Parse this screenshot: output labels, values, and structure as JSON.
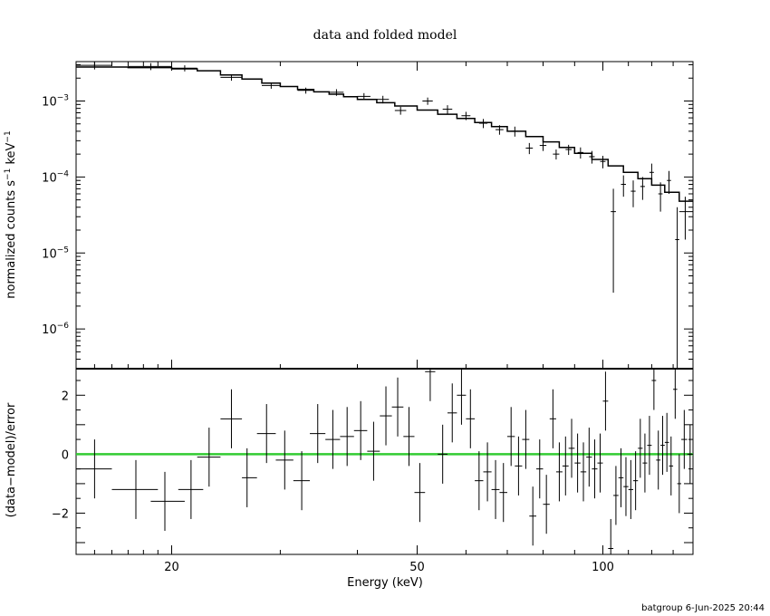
{
  "chart_data": [
    {
      "type": "scatter",
      "panel": "spectrum",
      "title": "data and folded model",
      "ylabel_main": "normalized counts s",
      "ylabel_sup1": "−1",
      "ylabel_mid": " keV",
      "ylabel_sup2": "−1",
      "x_scale": "log",
      "y_scale": "log",
      "xlim": [
        14,
        140
      ],
      "ylim": [
        3e-07,
        0.0033
      ],
      "y_ticks": [
        {
          "value": 0.001,
          "base": "10",
          "exp": "−3"
        },
        {
          "value": 0.0001,
          "base": "10",
          "exp": "−4"
        },
        {
          "value": 1e-05,
          "base": "10",
          "exp": "−5"
        },
        {
          "value": 1e-06,
          "base": "10",
          "exp": "−6"
        }
      ],
      "model": {
        "edges": [
          14,
          17,
          20,
          22,
          24,
          26,
          28,
          30,
          32,
          34,
          36,
          38,
          40,
          43,
          46,
          50,
          54,
          58,
          62,
          66,
          70,
          75,
          80,
          85,
          90,
          96,
          102,
          108,
          114,
          120,
          126,
          133,
          140
        ],
        "values": [
          0.0028,
          0.00275,
          0.00265,
          0.0025,
          0.0022,
          0.00195,
          0.00172,
          0.00155,
          0.00142,
          0.00132,
          0.00123,
          0.00114,
          0.00105,
          0.00095,
          0.00086,
          0.00076,
          0.00067,
          0.00059,
          0.00052,
          0.00046,
          0.0004,
          0.00034,
          0.00029,
          0.000245,
          0.000205,
          0.00017,
          0.00014,
          0.000115,
          9.5e-05,
          7.8e-05,
          6.3e-05,
          4.8e-05
        ]
      },
      "points": [
        {
          "x": 15.0,
          "xlo": 14.0,
          "xhi": 16.0,
          "y": 0.00295,
          "ylo": 0.0026,
          "yhi": 0.0033
        },
        {
          "x": 18.5,
          "xlo": 17.0,
          "xhi": 20.0,
          "y": 0.00285,
          "ylo": 0.00255,
          "yhi": 0.00315
        },
        {
          "x": 21.0,
          "xlo": 20.0,
          "xhi": 22.0,
          "y": 0.0027,
          "ylo": 0.00245,
          "yhi": 0.00295
        },
        {
          "x": 25.0,
          "xlo": 24.0,
          "xhi": 26.0,
          "y": 0.00205,
          "ylo": 0.00185,
          "yhi": 0.00225
        },
        {
          "x": 29.0,
          "xlo": 28.0,
          "xhi": 30.0,
          "y": 0.0016,
          "ylo": 0.00145,
          "yhi": 0.00175
        },
        {
          "x": 33.0,
          "xlo": 32.0,
          "xhi": 34.0,
          "y": 0.00138,
          "ylo": 0.00125,
          "yhi": 0.0015
        },
        {
          "x": 37.0,
          "xlo": 36.0,
          "xhi": 38.0,
          "y": 0.0013,
          "ylo": 0.00117,
          "yhi": 0.00143
        },
        {
          "x": 41.0,
          "xlo": 40.0,
          "xhi": 42.0,
          "y": 0.00115,
          "ylo": 0.00103,
          "yhi": 0.00127
        },
        {
          "x": 44.0,
          "xlo": 43.0,
          "xhi": 45.0,
          "y": 0.00105,
          "ylo": 0.00093,
          "yhi": 0.00117
        },
        {
          "x": 47.0,
          "xlo": 46.0,
          "xhi": 48.0,
          "y": 0.00075,
          "ylo": 0.00066,
          "yhi": 0.00084
        },
        {
          "x": 52.0,
          "xlo": 51.0,
          "xhi": 53.0,
          "y": 0.001,
          "ylo": 0.00089,
          "yhi": 0.00111
        },
        {
          "x": 56.0,
          "xlo": 55.0,
          "xhi": 57.0,
          "y": 0.00078,
          "ylo": 0.00068,
          "yhi": 0.00088
        },
        {
          "x": 60.0,
          "xlo": 59.0,
          "xhi": 61.0,
          "y": 0.00064,
          "ylo": 0.00056,
          "yhi": 0.00072
        },
        {
          "x": 64.0,
          "xlo": 63.0,
          "xhi": 65.0,
          "y": 0.00051,
          "ylo": 0.00044,
          "yhi": 0.00058
        },
        {
          "x": 68.0,
          "xlo": 67.0,
          "xhi": 69.0,
          "y": 0.00042,
          "ylo": 0.00036,
          "yhi": 0.00048
        },
        {
          "x": 72.0,
          "xlo": 71.0,
          "xhi": 73.0,
          "y": 0.0004,
          "ylo": 0.00034,
          "yhi": 0.00046
        },
        {
          "x": 76.0,
          "xlo": 75.0,
          "xhi": 77.0,
          "y": 0.00024,
          "ylo": 0.0002,
          "yhi": 0.00028
        },
        {
          "x": 80.0,
          "xlo": 79.0,
          "xhi": 81.0,
          "y": 0.00026,
          "ylo": 0.00022,
          "yhi": 0.0003
        },
        {
          "x": 84.0,
          "xlo": 83.0,
          "xhi": 85.0,
          "y": 0.0002,
          "ylo": 0.00017,
          "yhi": 0.00023
        },
        {
          "x": 88.0,
          "xlo": 87.0,
          "xhi": 89.0,
          "y": 0.00023,
          "ylo": 0.000195,
          "yhi": 0.000265
        },
        {
          "x": 92.0,
          "xlo": 91.0,
          "xhi": 93.0,
          "y": 0.00021,
          "ylo": 0.000175,
          "yhi": 0.000245
        },
        {
          "x": 96.0,
          "xlo": 95.0,
          "xhi": 97.0,
          "y": 0.000185,
          "ylo": 0.00015,
          "yhi": 0.00022
        },
        {
          "x": 100.0,
          "xlo": 99.0,
          "xhi": 101.0,
          "y": 0.00016,
          "ylo": 0.00013,
          "yhi": 0.00019
        },
        {
          "x": 104.0,
          "xlo": 103.0,
          "xhi": 105.0,
          "y": 3.5e-05,
          "ylo": 3e-06,
          "yhi": 7e-05
        },
        {
          "x": 108.0,
          "xlo": 107.0,
          "xhi": 109.0,
          "y": 8e-05,
          "ylo": 5.5e-05,
          "yhi": 0.000105
        },
        {
          "x": 112.0,
          "xlo": 111.0,
          "xhi": 113.0,
          "y": 6.5e-05,
          "ylo": 4e-05,
          "yhi": 9e-05
        },
        {
          "x": 116.0,
          "xlo": 115.0,
          "xhi": 117.0,
          "y": 7.5e-05,
          "ylo": 5e-05,
          "yhi": 0.0001
        },
        {
          "x": 120.0,
          "xlo": 119.0,
          "xhi": 121.0,
          "y": 0.000115,
          "ylo": 8e-05,
          "yhi": 0.00015
        },
        {
          "x": 124.0,
          "xlo": 123.0,
          "xhi": 125.0,
          "y": 6e-05,
          "ylo": 3.5e-05,
          "yhi": 8.5e-05
        },
        {
          "x": 128.0,
          "xlo": 127.0,
          "xhi": 129.0,
          "y": 9e-05,
          "ylo": 6e-05,
          "yhi": 0.00012
        },
        {
          "x": 132.0,
          "xlo": 131.0,
          "xhi": 133.0,
          "y": 1.5e-05,
          "ylo": 3e-07,
          "yhi": 4e-05
        },
        {
          "x": 136.0,
          "xlo": 133.0,
          "xhi": 140.0,
          "y": 3.5e-05,
          "ylo": 1.5e-05,
          "yhi": 5.5e-05
        }
      ]
    },
    {
      "type": "scatter",
      "panel": "residuals",
      "xlabel": "Energy (keV)",
      "ylabel": "(data−model)/error",
      "x_scale": "log",
      "xlim": [
        14,
        140
      ],
      "ylim": [
        -3.4,
        2.9
      ],
      "x_ticks": [
        20,
        50,
        100
      ],
      "y_ticks": [
        2,
        0,
        -2
      ],
      "zero_line": {
        "value": 0,
        "color": "#33cc33"
      },
      "points": [
        {
          "x": 15.0,
          "xlo": 14.0,
          "xhi": 16.0,
          "y": -0.5,
          "ylo": -1.5,
          "yhi": 0.5
        },
        {
          "x": 17.5,
          "xlo": 16.0,
          "xhi": 19.0,
          "y": -1.2,
          "ylo": -2.2,
          "yhi": -0.2
        },
        {
          "x": 19.5,
          "xlo": 18.5,
          "xhi": 21.0,
          "y": -1.6,
          "ylo": -2.6,
          "yhi": -0.6
        },
        {
          "x": 21.5,
          "xlo": 20.5,
          "xhi": 22.5,
          "y": -1.2,
          "ylo": -2.2,
          "yhi": -0.2
        },
        {
          "x": 23.0,
          "xlo": 22.0,
          "xhi": 24.0,
          "y": -0.1,
          "ylo": -1.1,
          "yhi": 0.9
        },
        {
          "x": 25.0,
          "xlo": 24.0,
          "xhi": 26.0,
          "y": 1.2,
          "ylo": 0.2,
          "yhi": 2.2
        },
        {
          "x": 26.5,
          "xlo": 26.0,
          "xhi": 27.5,
          "y": -0.8,
          "ylo": -1.8,
          "yhi": 0.2
        },
        {
          "x": 28.5,
          "xlo": 27.5,
          "xhi": 29.5,
          "y": 0.7,
          "ylo": -0.3,
          "yhi": 1.7
        },
        {
          "x": 30.5,
          "xlo": 29.5,
          "xhi": 31.5,
          "y": -0.2,
          "ylo": -1.2,
          "yhi": 0.8
        },
        {
          "x": 32.5,
          "xlo": 31.5,
          "xhi": 33.5,
          "y": -0.9,
          "ylo": -1.9,
          "yhi": 0.1
        },
        {
          "x": 34.5,
          "xlo": 33.5,
          "xhi": 35.5,
          "y": 0.7,
          "ylo": -0.3,
          "yhi": 1.7
        },
        {
          "x": 36.5,
          "xlo": 35.5,
          "xhi": 37.5,
          "y": 0.5,
          "ylo": -0.5,
          "yhi": 1.5
        },
        {
          "x": 38.5,
          "xlo": 37.5,
          "xhi": 39.5,
          "y": 0.6,
          "ylo": -0.4,
          "yhi": 1.6
        },
        {
          "x": 40.5,
          "xlo": 39.5,
          "xhi": 41.5,
          "y": 0.8,
          "ylo": -0.2,
          "yhi": 1.8
        },
        {
          "x": 42.5,
          "xlo": 41.5,
          "xhi": 43.5,
          "y": 0.1,
          "ylo": -0.9,
          "yhi": 1.1
        },
        {
          "x": 44.5,
          "xlo": 43.5,
          "xhi": 45.5,
          "y": 1.3,
          "ylo": 0.3,
          "yhi": 2.3
        },
        {
          "x": 46.5,
          "xlo": 45.5,
          "xhi": 47.5,
          "y": 1.6,
          "ylo": 0.6,
          "yhi": 2.6
        },
        {
          "x": 48.5,
          "xlo": 47.5,
          "xhi": 49.5,
          "y": 0.6,
          "ylo": -0.4,
          "yhi": 1.6
        },
        {
          "x": 50.5,
          "xlo": 49.5,
          "xhi": 51.5,
          "y": -1.3,
          "ylo": -2.3,
          "yhi": -0.3
        },
        {
          "x": 52.5,
          "xlo": 51.5,
          "xhi": 53.5,
          "y": 2.8,
          "ylo": 1.8,
          "yhi": 3.8
        },
        {
          "x": 55.0,
          "xlo": 54.0,
          "xhi": 56.0,
          "y": 0.0,
          "ylo": -1.0,
          "yhi": 1.0
        },
        {
          "x": 57.0,
          "xlo": 56.0,
          "xhi": 58.0,
          "y": 1.4,
          "ylo": 0.4,
          "yhi": 2.4
        },
        {
          "x": 59.0,
          "xlo": 58.0,
          "xhi": 60.0,
          "y": 2.0,
          "ylo": 1.0,
          "yhi": 3.0
        },
        {
          "x": 61.0,
          "xlo": 60.0,
          "xhi": 62.0,
          "y": 1.2,
          "ylo": 0.2,
          "yhi": 2.2
        },
        {
          "x": 63.0,
          "xlo": 62.0,
          "xhi": 64.0,
          "y": -0.9,
          "ylo": -1.9,
          "yhi": 0.1
        },
        {
          "x": 65.0,
          "xlo": 64.0,
          "xhi": 66.0,
          "y": -0.6,
          "ylo": -1.6,
          "yhi": 0.4
        },
        {
          "x": 67.0,
          "xlo": 66.0,
          "xhi": 68.0,
          "y": -1.2,
          "ylo": -2.2,
          "yhi": -0.2
        },
        {
          "x": 69.0,
          "xlo": 68.0,
          "xhi": 70.0,
          "y": -1.3,
          "ylo": -2.3,
          "yhi": -0.3
        },
        {
          "x": 71.0,
          "xlo": 70.0,
          "xhi": 72.0,
          "y": 0.6,
          "ylo": -0.4,
          "yhi": 1.6
        },
        {
          "x": 73.0,
          "xlo": 72.0,
          "xhi": 74.0,
          "y": -0.4,
          "ylo": -1.4,
          "yhi": 0.6
        },
        {
          "x": 75.0,
          "xlo": 74.0,
          "xhi": 76.0,
          "y": 0.5,
          "ylo": -0.5,
          "yhi": 1.5
        },
        {
          "x": 77.0,
          "xlo": 76.0,
          "xhi": 78.0,
          "y": -2.1,
          "ylo": -3.1,
          "yhi": -1.1
        },
        {
          "x": 79.0,
          "xlo": 78.0,
          "xhi": 80.0,
          "y": -0.5,
          "ylo": -1.5,
          "yhi": 0.5
        },
        {
          "x": 81.0,
          "xlo": 80.0,
          "xhi": 82.0,
          "y": -1.7,
          "ylo": -2.7,
          "yhi": -0.7
        },
        {
          "x": 83.0,
          "xlo": 82.0,
          "xhi": 84.0,
          "y": 1.2,
          "ylo": 0.2,
          "yhi": 2.2
        },
        {
          "x": 85.0,
          "xlo": 84.0,
          "xhi": 86.0,
          "y": -0.6,
          "ylo": -1.6,
          "yhi": 0.4
        },
        {
          "x": 87.0,
          "xlo": 86.0,
          "xhi": 88.0,
          "y": -0.4,
          "ylo": -1.4,
          "yhi": 0.6
        },
        {
          "x": 89.0,
          "xlo": 88.0,
          "xhi": 90.0,
          "y": 0.2,
          "ylo": -0.8,
          "yhi": 1.2
        },
        {
          "x": 91.0,
          "xlo": 90.0,
          "xhi": 92.0,
          "y": -0.3,
          "ylo": -1.3,
          "yhi": 0.7
        },
        {
          "x": 93.0,
          "xlo": 92.0,
          "xhi": 94.0,
          "y": -0.6,
          "ylo": -1.6,
          "yhi": 0.4
        },
        {
          "x": 95.0,
          "xlo": 94.0,
          "xhi": 96.0,
          "y": -0.1,
          "ylo": -1.1,
          "yhi": 0.9
        },
        {
          "x": 97.0,
          "xlo": 96.0,
          "xhi": 98.0,
          "y": -0.5,
          "ylo": -1.5,
          "yhi": 0.5
        },
        {
          "x": 99.0,
          "xlo": 98.0,
          "xhi": 100.0,
          "y": -0.3,
          "ylo": -1.3,
          "yhi": 0.7
        },
        {
          "x": 101.0,
          "xlo": 100.0,
          "xhi": 102.0,
          "y": 1.8,
          "ylo": 0.8,
          "yhi": 2.8
        },
        {
          "x": 103.0,
          "xlo": 102.0,
          "xhi": 104.0,
          "y": -3.2,
          "ylo": -4.2,
          "yhi": -2.2
        },
        {
          "x": 105.0,
          "xlo": 104.0,
          "xhi": 106.0,
          "y": -1.4,
          "ylo": -2.4,
          "yhi": -0.4
        },
        {
          "x": 107.0,
          "xlo": 106.0,
          "xhi": 108.0,
          "y": -0.8,
          "ylo": -1.8,
          "yhi": 0.2
        },
        {
          "x": 109.0,
          "xlo": 108.0,
          "xhi": 110.0,
          "y": -1.1,
          "ylo": -2.1,
          "yhi": -0.1
        },
        {
          "x": 111.0,
          "xlo": 110.0,
          "xhi": 112.0,
          "y": -1.2,
          "ylo": -2.2,
          "yhi": -0.2
        },
        {
          "x": 113.0,
          "xlo": 112.0,
          "xhi": 114.0,
          "y": -0.9,
          "ylo": -1.9,
          "yhi": 0.1
        },
        {
          "x": 115.0,
          "xlo": 114.0,
          "xhi": 116.0,
          "y": 0.2,
          "ylo": -0.8,
          "yhi": 1.2
        },
        {
          "x": 117.0,
          "xlo": 116.0,
          "xhi": 118.0,
          "y": -0.3,
          "ylo": -1.3,
          "yhi": 0.7
        },
        {
          "x": 119.0,
          "xlo": 118.0,
          "xhi": 120.0,
          "y": 0.3,
          "ylo": -0.7,
          "yhi": 1.3
        },
        {
          "x": 121.0,
          "xlo": 120.0,
          "xhi": 122.0,
          "y": 2.5,
          "ylo": 1.5,
          "yhi": 3.5
        },
        {
          "x": 123.0,
          "xlo": 122.0,
          "xhi": 124.0,
          "y": -0.2,
          "ylo": -1.2,
          "yhi": 0.8
        },
        {
          "x": 125.0,
          "xlo": 124.0,
          "xhi": 126.0,
          "y": 0.3,
          "ylo": -0.7,
          "yhi": 1.3
        },
        {
          "x": 127.0,
          "xlo": 126.0,
          "xhi": 128.0,
          "y": 0.4,
          "ylo": -0.6,
          "yhi": 1.4
        },
        {
          "x": 129.0,
          "xlo": 128.0,
          "xhi": 130.0,
          "y": -0.4,
          "ylo": -1.4,
          "yhi": 0.6
        },
        {
          "x": 131.0,
          "xlo": 130.0,
          "xhi": 132.0,
          "y": 2.2,
          "ylo": 1.2,
          "yhi": 3.2
        },
        {
          "x": 133.0,
          "xlo": 132.0,
          "xhi": 134.0,
          "y": -1.0,
          "ylo": -2.0,
          "yhi": 0.0
        },
        {
          "x": 135.5,
          "xlo": 134.0,
          "xhi": 137.0,
          "y": 0.5,
          "ylo": -0.5,
          "yhi": 1.5
        },
        {
          "x": 138.5,
          "xlo": 137.0,
          "xhi": 140.0,
          "y": 0.0,
          "ylo": -1.0,
          "yhi": 1.0
        }
      ]
    }
  ],
  "footer": {
    "user": "batgroup",
    "timestamp": "6-Jun-2025 20:44"
  }
}
